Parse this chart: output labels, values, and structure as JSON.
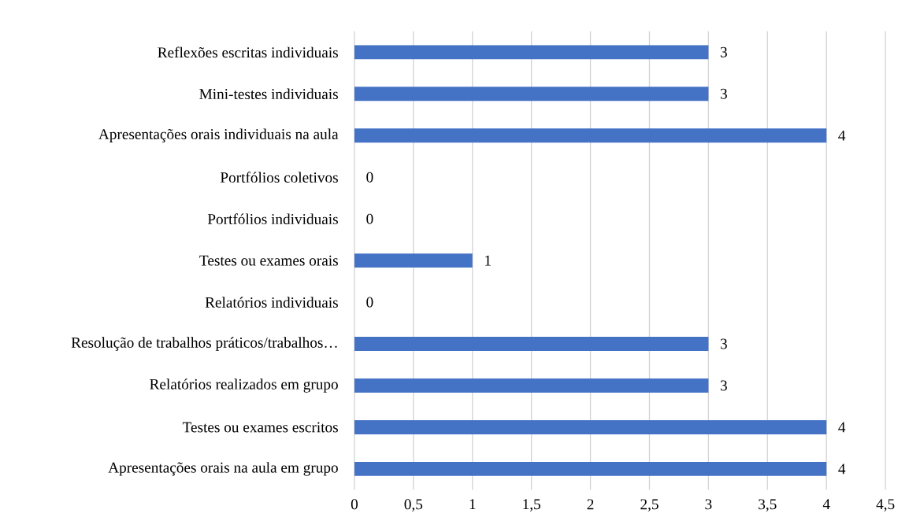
{
  "chart_data": {
    "type": "bar",
    "orientation": "horizontal",
    "categories": [
      "Reflexões escritas individuais",
      "Mini-testes individuais",
      "Apresentações orais individuais na aula",
      "Portfólios coletivos",
      "Portfólios individuais",
      "Testes ou exames orais",
      "Relatórios individuais",
      "Resolução de trabalhos práticos/trabalhos…",
      "Relatórios realizados em grupo",
      "Testes ou exames escritos",
      "Apresentações orais na aula em grupo"
    ],
    "values": [
      3,
      3,
      4,
      0,
      0,
      1,
      0,
      3,
      3,
      4,
      4
    ],
    "color": "#4472c4",
    "xlim": [
      0,
      4.5
    ],
    "xticks": [
      0,
      {
        "value": 0.5,
        "label": "0,5"
      },
      1,
      {
        "value": 1.5,
        "label": "1,5"
      },
      2,
      {
        "value": 2.5,
        "label": "2,5"
      },
      3,
      {
        "value": 3.5,
        "label": "3,5"
      },
      4,
      {
        "value": 4.5,
        "label": "4,5"
      }
    ],
    "grid": "x",
    "data_labels": true
  }
}
